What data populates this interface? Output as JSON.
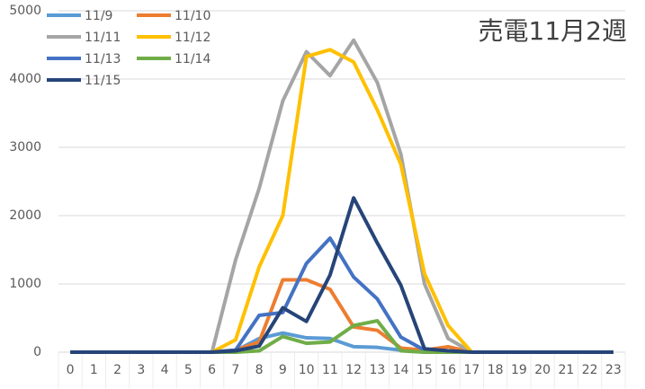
{
  "chart_data": {
    "type": "line",
    "title": "売電11月2週",
    "categories": [
      "0",
      "1",
      "2",
      "3",
      "4",
      "5",
      "6",
      "7",
      "8",
      "9",
      "10",
      "11",
      "12",
      "13",
      "14",
      "15",
      "16",
      "17",
      "18",
      "19",
      "20",
      "21",
      "22",
      "23"
    ],
    "ylim": [
      0,
      5000
    ],
    "yticks": [
      0,
      1000,
      2000,
      3000,
      4000,
      5000
    ],
    "grid": true,
    "series": [
      {
        "name": "11/9",
        "color": "#5b9bd5",
        "values": [
          0,
          0,
          0,
          0,
          0,
          0,
          0,
          20,
          200,
          280,
          210,
          200,
          80,
          70,
          30,
          0,
          0,
          0,
          0,
          0,
          0,
          0,
          0,
          0
        ]
      },
      {
        "name": "11/10",
        "color": "#ed7d31",
        "values": [
          0,
          0,
          0,
          0,
          0,
          0,
          0,
          30,
          150,
          1060,
          1060,
          920,
          370,
          320,
          60,
          30,
          80,
          0,
          0,
          0,
          0,
          0,
          0,
          0
        ]
      },
      {
        "name": "11/11",
        "color": "#a5a5a5",
        "values": [
          0,
          0,
          0,
          0,
          0,
          0,
          0,
          1350,
          2400,
          3680,
          4400,
          4050,
          4570,
          3950,
          2900,
          1000,
          200,
          0,
          0,
          0,
          0,
          0,
          0,
          0
        ]
      },
      {
        "name": "11/12",
        "color": "#ffc000",
        "values": [
          0,
          0,
          0,
          0,
          0,
          0,
          0,
          180,
          1250,
          2000,
          4330,
          4430,
          4250,
          3550,
          2750,
          1150,
          390,
          0,
          0,
          0,
          0,
          0,
          0,
          0
        ]
      },
      {
        "name": "11/13",
        "color": "#4472c4",
        "values": [
          0,
          0,
          0,
          0,
          0,
          0,
          0,
          30,
          540,
          580,
          1300,
          1670,
          1100,
          780,
          220,
          30,
          0,
          0,
          0,
          0,
          0,
          0,
          0,
          0
        ]
      },
      {
        "name": "11/14",
        "color": "#70ad47",
        "values": [
          0,
          0,
          0,
          0,
          0,
          0,
          0,
          0,
          20,
          230,
          130,
          150,
          390,
          460,
          20,
          0,
          0,
          0,
          0,
          0,
          0,
          0,
          0,
          0
        ]
      },
      {
        "name": "11/15",
        "color": "#264478",
        "values": [
          0,
          0,
          0,
          0,
          0,
          0,
          0,
          20,
          90,
          650,
          450,
          1130,
          2260,
          1600,
          980,
          50,
          20,
          0,
          0,
          0,
          0,
          0,
          0,
          0
        ]
      }
    ]
  }
}
